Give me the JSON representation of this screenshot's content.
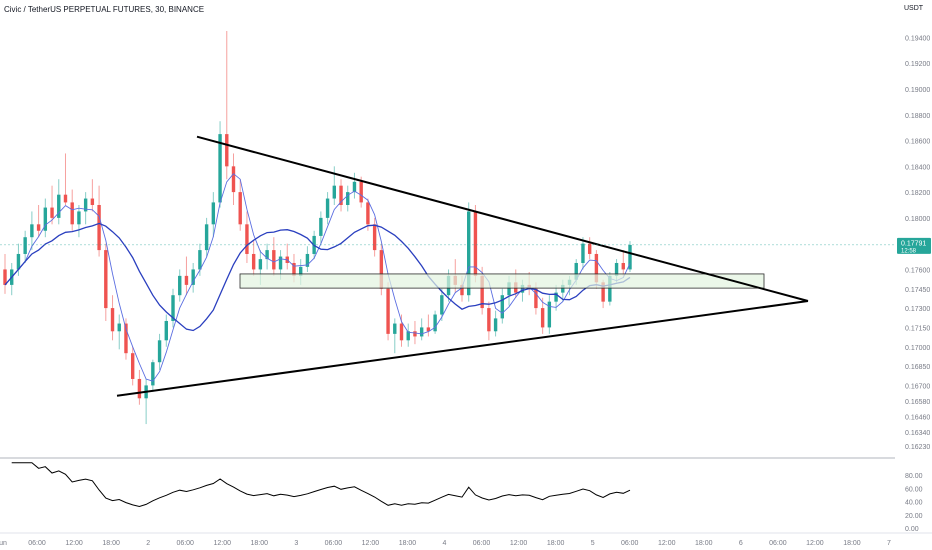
{
  "header": {
    "symbol_line": "Civic / TetherUS PERPETUAL FUTURES, 30, BINANCE"
  },
  "currency": "USDT",
  "price_badge": {
    "value": "0.17791",
    "countdown": "12:58"
  },
  "colors": {
    "up": "#26a69a",
    "down": "#ef5350",
    "ma_fast": "#5b6ee1",
    "ma_slow": "#2a3fbf",
    "trend_lines": "#000000",
    "zone_fill": "#e3f3df",
    "zone_stroke": "#2b2b2b",
    "badge": "#26a69a",
    "grid": "#e0e3eb",
    "text": "#787b86"
  },
  "chart_data": {
    "type": "candlestick",
    "grid": false,
    "y_axis": {
      "range": [
        0.1616,
        0.1952
      ],
      "ticks": [
        "0.19400",
        "0.19200",
        "0.19000",
        "0.18800",
        "0.18600",
        "0.18400",
        "0.18200",
        "0.18000",
        "0.17600",
        "0.17450",
        "0.17300",
        "0.17150",
        "0.17000",
        "0.16850",
        "0.16700",
        "0.16580",
        "0.16460",
        "0.16340",
        "0.16230"
      ]
    },
    "x_axis": {
      "ticks": [
        "un",
        "06:00",
        "12:00",
        "18:00",
        "2",
        "06:00",
        "12:00",
        "18:00",
        "3",
        "06:00",
        "12:00",
        "18:00",
        "4",
        "06:00",
        "12:00",
        "18:00",
        "5",
        "06:00",
        "12:00",
        "18:00",
        "6",
        "06:00",
        "12:00",
        "18:00",
        "7"
      ]
    },
    "series": [
      {
        "points": [
          [
            0.176,
            0.1772,
            0.1741,
            0.1748
          ],
          [
            0.1748,
            0.1765,
            0.174,
            0.176
          ],
          [
            0.176,
            0.178,
            0.1755,
            0.1772
          ],
          [
            0.1772,
            0.179,
            0.1765,
            0.1785
          ],
          [
            0.1785,
            0.1805,
            0.1775,
            0.1795
          ],
          [
            0.1795,
            0.181,
            0.1785,
            0.179
          ],
          [
            0.179,
            0.1815,
            0.1785,
            0.1808
          ],
          [
            0.1808,
            0.1825,
            0.1795,
            0.18
          ],
          [
            0.18,
            0.183,
            0.1795,
            0.1818
          ],
          [
            0.1818,
            0.185,
            0.181,
            0.1812
          ],
          [
            0.1812,
            0.1822,
            0.179,
            0.1795
          ],
          [
            0.1795,
            0.181,
            0.1785,
            0.1805
          ],
          [
            0.1805,
            0.182,
            0.1795,
            0.1815
          ],
          [
            0.1815,
            0.183,
            0.1805,
            0.181
          ],
          [
            0.181,
            0.1825,
            0.177,
            0.1775
          ],
          [
            0.1775,
            0.178,
            0.172,
            0.173
          ],
          [
            0.173,
            0.174,
            0.1705,
            0.1712
          ],
          [
            0.1712,
            0.1725,
            0.1698,
            0.1718
          ],
          [
            0.1718,
            0.1722,
            0.169,
            0.1695
          ],
          [
            0.1695,
            0.17,
            0.167,
            0.1675
          ],
          [
            0.1675,
            0.1682,
            0.1655,
            0.166
          ],
          [
            0.166,
            0.1675,
            0.164,
            0.167
          ],
          [
            0.167,
            0.169,
            0.1665,
            0.1688
          ],
          [
            0.1688,
            0.171,
            0.1682,
            0.1705
          ],
          [
            0.1705,
            0.1725,
            0.17,
            0.172
          ],
          [
            0.172,
            0.1745,
            0.1715,
            0.174
          ],
          [
            0.174,
            0.176,
            0.1735,
            0.1755
          ],
          [
            0.1755,
            0.177,
            0.174,
            0.1748
          ],
          [
            0.1748,
            0.1765,
            0.1742,
            0.176
          ],
          [
            0.176,
            0.178,
            0.1755,
            0.1775
          ],
          [
            0.1775,
            0.18,
            0.177,
            0.1795
          ],
          [
            0.1795,
            0.182,
            0.1785,
            0.1812
          ],
          [
            0.1812,
            0.1875,
            0.1808,
            0.1865
          ],
          [
            0.1865,
            0.1945,
            0.183,
            0.184
          ],
          [
            0.184,
            0.185,
            0.181,
            0.182
          ],
          [
            0.182,
            0.183,
            0.179,
            0.1795
          ],
          [
            0.1795,
            0.1805,
            0.1765,
            0.1772
          ],
          [
            0.1772,
            0.1782,
            0.1755,
            0.176
          ],
          [
            0.176,
            0.1775,
            0.1748,
            0.1768
          ],
          [
            0.1768,
            0.178,
            0.176,
            0.1775
          ],
          [
            0.1775,
            0.1785,
            0.1755,
            0.176
          ],
          [
            0.176,
            0.1775,
            0.1752,
            0.177
          ],
          [
            0.177,
            0.178,
            0.176,
            0.1765
          ],
          [
            0.1765,
            0.1772,
            0.175,
            0.1755
          ],
          [
            0.1755,
            0.1768,
            0.1748,
            0.1762
          ],
          [
            0.1762,
            0.1778,
            0.1758,
            0.1772
          ],
          [
            0.1772,
            0.179,
            0.1768,
            0.1786
          ],
          [
            0.1786,
            0.1805,
            0.178,
            0.18
          ],
          [
            0.18,
            0.182,
            0.1795,
            0.1815
          ],
          [
            0.1815,
            0.184,
            0.181,
            0.1825
          ],
          [
            0.1825,
            0.183,
            0.1805,
            0.181
          ],
          [
            0.181,
            0.1825,
            0.1805,
            0.182
          ],
          [
            0.182,
            0.1835,
            0.1815,
            0.1828
          ],
          [
            0.1828,
            0.1832,
            0.1808,
            0.1812
          ],
          [
            0.1812,
            0.1815,
            0.179,
            0.1795
          ],
          [
            0.1795,
            0.18,
            0.177,
            0.1775
          ],
          [
            0.1775,
            0.178,
            0.174,
            0.1745
          ],
          [
            0.1745,
            0.175,
            0.1705,
            0.171
          ],
          [
            0.171,
            0.1722,
            0.1695,
            0.1718
          ],
          [
            0.1718,
            0.1725,
            0.17,
            0.1705
          ],
          [
            0.1705,
            0.1718,
            0.17,
            0.1712
          ],
          [
            0.1712,
            0.172,
            0.1702,
            0.1708
          ],
          [
            0.1708,
            0.1722,
            0.1705,
            0.1715
          ],
          [
            0.1715,
            0.1725,
            0.1708,
            0.1712
          ],
          [
            0.1712,
            0.1728,
            0.171,
            0.1725
          ],
          [
            0.1725,
            0.1745,
            0.172,
            0.174
          ],
          [
            0.174,
            0.176,
            0.1735,
            0.1755
          ],
          [
            0.1755,
            0.1768,
            0.1742,
            0.1748
          ],
          [
            0.1748,
            0.1755,
            0.1735,
            0.174
          ],
          [
            0.174,
            0.1812,
            0.1735,
            0.1805
          ],
          [
            0.1805,
            0.181,
            0.175,
            0.1755
          ],
          [
            0.1755,
            0.1762,
            0.1725,
            0.173
          ],
          [
            0.173,
            0.1735,
            0.1705,
            0.1712
          ],
          [
            0.1712,
            0.1728,
            0.1708,
            0.1722
          ],
          [
            0.1722,
            0.1745,
            0.1718,
            0.174
          ],
          [
            0.174,
            0.1755,
            0.1732,
            0.175
          ],
          [
            0.175,
            0.176,
            0.1738,
            0.1742
          ],
          [
            0.1742,
            0.1752,
            0.1735,
            0.1748
          ],
          [
            0.1748,
            0.1758,
            0.174,
            0.1745
          ],
          [
            0.1745,
            0.175,
            0.1725,
            0.173
          ],
          [
            0.173,
            0.1738,
            0.171,
            0.1715
          ],
          [
            0.1715,
            0.174,
            0.171,
            0.1735
          ],
          [
            0.1735,
            0.1748,
            0.1728,
            0.1742
          ],
          [
            0.1742,
            0.1752,
            0.1735,
            0.1748
          ],
          [
            0.1748,
            0.1755,
            0.174,
            0.1752
          ],
          [
            0.1752,
            0.1768,
            0.1748,
            0.1765
          ],
          [
            0.1765,
            0.1785,
            0.176,
            0.178
          ],
          [
            0.178,
            0.1785,
            0.1768,
            0.1772
          ],
          [
            0.1772,
            0.1775,
            0.1745,
            0.175
          ],
          [
            0.175,
            0.1752,
            0.173,
            0.1735
          ],
          [
            0.1735,
            0.1758,
            0.1732,
            0.1755
          ],
          [
            0.1755,
            0.1768,
            0.175,
            0.1765
          ],
          [
            0.1765,
            0.1775,
            0.1755,
            0.176
          ],
          [
            0.176,
            0.1782,
            0.1758,
            0.1779
          ]
        ]
      }
    ],
    "rsi": {
      "axis_ticks": [
        "80.00",
        "60.00",
        "40.00",
        "20.00",
        "0.00"
      ],
      "range": [
        0,
        100
      ]
    }
  }
}
